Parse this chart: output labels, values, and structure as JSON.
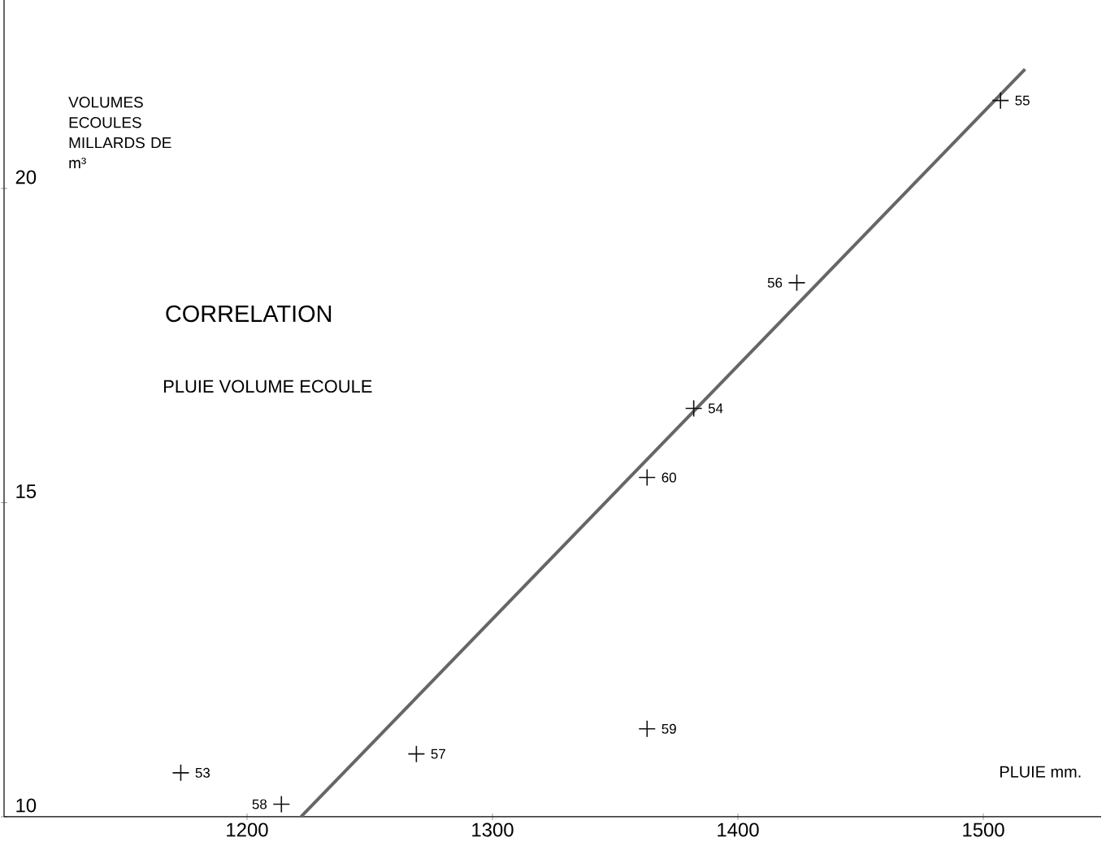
{
  "chart_data": {
    "type": "scatter",
    "title": "CORRELATION",
    "subtitle": "PLUIE VOLUME ECOULE",
    "xlabel": "PLUIE mm.",
    "ylabel": "VOLUMES ECOULES MILLARDS DE m³",
    "xlim": [
      1101,
      1548
    ],
    "ylim": [
      10,
      23
    ],
    "xticks": [
      1200,
      1300,
      1400,
      1500
    ],
    "yticks": [
      10,
      15,
      20
    ],
    "grid": false,
    "series": [
      {
        "marker": "cross",
        "color": "#111111",
        "x": [
          1173,
          1214,
          1269,
          1363,
          1363,
          1382,
          1424,
          1507
        ],
        "values": [
          10.7,
          10.2,
          11.0,
          11.4,
          15.4,
          16.5,
          18.5,
          21.4
        ]
      },
      {
        "type": "line",
        "color": "#666666",
        "line_style": "solid",
        "x": [
          1222,
          1517
        ],
        "values": [
          10.0,
          21.9
        ]
      }
    ],
    "annotations": [
      {
        "text": "53",
        "x": 1173,
        "y": 10.7
      },
      {
        "text": "58",
        "x": 1214,
        "y": 10.2
      },
      {
        "text": "57",
        "x": 1269,
        "y": 11.0
      },
      {
        "text": "59",
        "x": 1363,
        "y": 11.4
      },
      {
        "text": "60",
        "x": 1363,
        "y": 15.4
      },
      {
        "text": "54",
        "x": 1382,
        "y": 16.5
      },
      {
        "text": "56",
        "x": 1424,
        "y": 18.5
      },
      {
        "text": "55",
        "x": 1507,
        "y": 21.4
      }
    ]
  }
}
